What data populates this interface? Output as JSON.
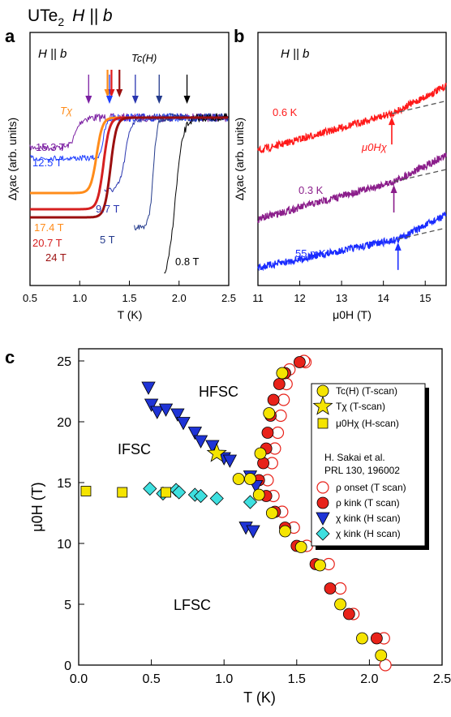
{
  "figure_title": {
    "material": "UTe",
    "sub": "2",
    "field": "H || b"
  },
  "chart_data": [
    {
      "panel": "a",
      "type": "line",
      "annotation": "H || b",
      "tc_label": "Tc(H)",
      "tchi_label": "Tχ",
      "xlabel": "T (K)",
      "ylabel": "Δχac (arb. units)",
      "xlim": [
        0.5,
        2.5
      ],
      "xticks": [
        "0.5",
        "1.0",
        "1.5",
        "2.0",
        "2.5"
      ],
      "series": [
        {
          "name": "15.3 T",
          "color": "#7b1fa2",
          "onset": 1.05
        },
        {
          "name": "12.5 T",
          "color": "#1f3fff",
          "onset": 1.3
        },
        {
          "name": "9.7 T",
          "color": "#2a36b0",
          "onset": 1.55
        },
        {
          "name": "5 T",
          "color": "#233a8c",
          "onset": 1.8
        },
        {
          "name": "0.8 T",
          "color": "#000000",
          "onset": 2.08
        },
        {
          "name": "17.4 T",
          "color": "#ff8c1a",
          "onset": 1.26
        },
        {
          "name": "20.7 T",
          "color": "#d62020",
          "onset": 1.33
        },
        {
          "name": "24 T",
          "color": "#9b0f0f",
          "onset": 1.4
        }
      ]
    },
    {
      "panel": "b",
      "type": "line",
      "annotation": "H || b",
      "xlabel": "μ0H (T)",
      "ylabel": "Δχac (arb. units)",
      "xlim": [
        11,
        15.5
      ],
      "xticks": [
        "11",
        "12",
        "13",
        "14",
        "15"
      ],
      "hchi_label": "μ0Hχ",
      "series": [
        {
          "name": "0.6 K",
          "color": "#ff1a1a",
          "kink": 14.2
        },
        {
          "name": "0.3 K",
          "color": "#8b1e8b",
          "kink": 14.25
        },
        {
          "name": "55 mK",
          "color": "#1a2cff",
          "kink": 14.35
        }
      ]
    },
    {
      "panel": "c",
      "type": "scatter",
      "xlabel": "T (K)",
      "ylabel": "μ0H (T)",
      "xlim": [
        0,
        2.5
      ],
      "ylim": [
        0,
        26
      ],
      "xticks": [
        "0.0",
        "0.5",
        "1.0",
        "1.5",
        "2.0",
        "2.5"
      ],
      "yticks": [
        "0",
        "5",
        "10",
        "15",
        "20",
        "25"
      ],
      "regions": [
        "HFSC",
        "IFSC",
        "LFSC"
      ],
      "legend": {
        "tc": "Tc(H) (T-scan)",
        "tchi": "Tχ (T-scan)",
        "hchi": "μ0Hχ (H-scan)",
        "ref1": "H. Sakai et al.",
        "ref2": "PRL 130, 196002",
        "rho_onset": "ρ onset (T scan)",
        "rho_kink": "ρ kink (T scan)",
        "chi_kink_tri": "χ kink (H scan)",
        "chi_kink_dia": "χ kink (H scan)"
      },
      "series": [
        {
          "name": "Tc(H) (T-scan)",
          "marker": "circle",
          "color": "#f5e400",
          "points": [
            [
              2.08,
              0.8
            ],
            [
              1.95,
              2.2
            ],
            [
              1.8,
              5.0
            ],
            [
              1.66,
              8.2
            ],
            [
              1.53,
              9.7
            ],
            [
              1.42,
              11.0
            ],
            [
              1.33,
              12.5
            ],
            [
              1.24,
              14.0
            ],
            [
              1.18,
              15.3
            ],
            [
              1.1,
              15.3
            ],
            [
              1.25,
              17.4
            ],
            [
              1.31,
              20.7
            ],
            [
              1.4,
              24.0
            ]
          ]
        },
        {
          "name": "Tχ (T-scan)",
          "marker": "star",
          "color": "#f5e400",
          "points": [
            [
              0.95,
              17.4
            ]
          ]
        },
        {
          "name": "μ0Hχ (H-scan)",
          "marker": "square",
          "color": "#f5e400",
          "points": [
            [
              0.05,
              14.3
            ],
            [
              0.3,
              14.2
            ],
            [
              0.6,
              14.2
            ]
          ]
        },
        {
          "name": "ρ onset (T scan)",
          "marker": "open-circle",
          "color": "#e8221a",
          "points": [
            [
              2.11,
              0.0
            ],
            [
              2.1,
              2.2
            ],
            [
              1.89,
              4.2
            ],
            [
              1.8,
              6.3
            ],
            [
              1.72,
              8.3
            ],
            [
              1.57,
              9.8
            ],
            [
              1.48,
              11.3
            ],
            [
              1.4,
              12.6
            ],
            [
              1.34,
              13.9
            ],
            [
              1.3,
              15.2
            ],
            [
              1.33,
              16.6
            ],
            [
              1.35,
              17.8
            ],
            [
              1.37,
              19.1
            ],
            [
              1.39,
              20.5
            ],
            [
              1.41,
              21.8
            ],
            [
              1.43,
              23.1
            ],
            [
              1.45,
              24.3
            ],
            [
              1.56,
              24.9
            ],
            [
              1.55,
              25.0
            ]
          ]
        },
        {
          "name": "ρ kink (T scan)",
          "marker": "filled-circle",
          "color": "#e8221a",
          "points": [
            [
              2.05,
              2.2
            ],
            [
              1.86,
              4.2
            ],
            [
              1.73,
              6.3
            ],
            [
              1.63,
              8.3
            ],
            [
              1.5,
              9.8
            ],
            [
              1.42,
              11.3
            ],
            [
              1.35,
              12.6
            ],
            [
              1.29,
              13.9
            ],
            [
              1.24,
              15.2
            ],
            [
              1.27,
              16.6
            ],
            [
              1.29,
              17.8
            ],
            [
              1.3,
              19.1
            ],
            [
              1.32,
              20.5
            ],
            [
              1.34,
              21.8
            ],
            [
              1.38,
              23.1
            ],
            [
              1.42,
              24.0
            ],
            [
              1.52,
              24.9
            ]
          ]
        },
        {
          "name": "χ kink (H scan) tri",
          "marker": "down-triangle",
          "color": "#1f34d6",
          "points": [
            [
              0.48,
              22.8
            ],
            [
              0.5,
              21.4
            ],
            [
              0.54,
              20.8
            ],
            [
              0.6,
              21.0
            ],
            [
              0.68,
              20.6
            ],
            [
              0.72,
              19.9
            ],
            [
              0.8,
              19.1
            ],
            [
              0.84,
              18.4
            ],
            [
              0.92,
              18.0
            ],
            [
              1.0,
              17.0
            ],
            [
              1.04,
              16.8
            ],
            [
              1.18,
              15.5
            ],
            [
              1.22,
              14.7
            ],
            [
              1.15,
              11.3
            ],
            [
              1.2,
              11.0
            ]
          ]
        },
        {
          "name": "χ kink (H scan) dia",
          "marker": "diamond",
          "color": "#3ee0e0",
          "points": [
            [
              0.49,
              14.5
            ],
            [
              0.58,
              14.1
            ],
            [
              0.67,
              14.4
            ],
            [
              0.69,
              14.2
            ],
            [
              0.8,
              14.0
            ],
            [
              0.84,
              13.9
            ],
            [
              0.95,
              13.7
            ],
            [
              1.18,
              13.4
            ]
          ]
        }
      ]
    }
  ]
}
